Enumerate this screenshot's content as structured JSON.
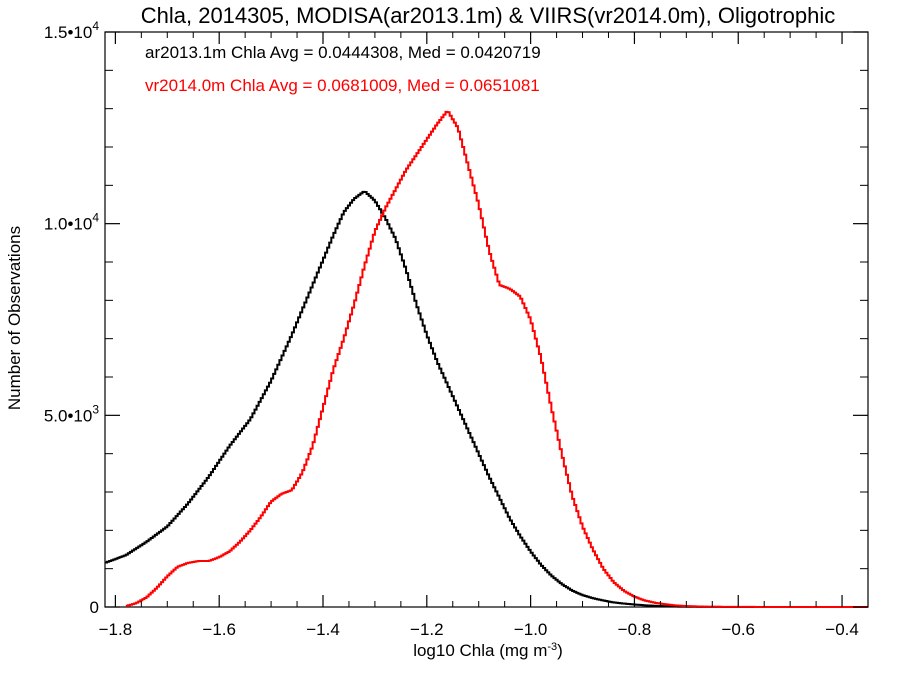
{
  "chart_data": {
    "type": "line",
    "title": "Chla, 2014305, MODISA(ar2013.1m) & VIIRS(vr2014.0m), Oligotrophic",
    "xlabel": "log10 Chla (mg m",
    "xlabel_sup": "-3",
    "xlabel_end": ")",
    "ylabel": "Number of Observations",
    "xlim": [
      -1.82,
      -0.35
    ],
    "ylim": [
      0,
      15000
    ],
    "x_ticks": [
      -1.8,
      -1.6,
      -1.4,
      -1.2,
      -1.0,
      -0.8,
      -0.6,
      -0.4
    ],
    "x_tick_labels": [
      "−1.8",
      "−1.6",
      "−1.4",
      "−1.2",
      "−1.0",
      "−0.8",
      "−0.6",
      "−0.4"
    ],
    "y_ticks": [
      0,
      5000,
      10000,
      15000
    ],
    "y_tick_labels": [
      {
        "base": "0",
        "exp": ""
      },
      {
        "base": "5.0•10",
        "exp": "3"
      },
      {
        "base": "1.0•10",
        "exp": "4"
      },
      {
        "base": "1.5•10",
        "exp": "4"
      }
    ],
    "annotations": [
      {
        "text": "ar2013.1m Chla Avg = 0.0444308, Med = 0.0420719",
        "color": "#000000"
      },
      {
        "text": "vr2014.0m Chla Avg = 0.0681009, Med = 0.0651081",
        "color": "#ff0000"
      }
    ],
    "step": "histogram",
    "series": [
      {
        "color": "#000000",
        "x": [
          -1.82,
          -1.78,
          -1.74,
          -1.7,
          -1.66,
          -1.62,
          -1.58,
          -1.54,
          -1.5,
          -1.46,
          -1.42,
          -1.38,
          -1.36,
          -1.34,
          -1.32,
          -1.3,
          -1.28,
          -1.26,
          -1.24,
          -1.22,
          -1.2,
          -1.18,
          -1.16,
          -1.14,
          -1.12,
          -1.1,
          -1.08,
          -1.06,
          -1.04,
          -1.02,
          -1.0,
          -0.98,
          -0.96,
          -0.94,
          -0.92,
          -0.9,
          -0.88,
          -0.86,
          -0.84,
          -0.82,
          -0.8,
          -0.78,
          -0.76,
          -0.74,
          -0.72,
          -0.7,
          -0.68,
          -0.66,
          -0.62,
          -0.5,
          -0.35
        ],
        "y": [
          1150,
          1350,
          1700,
          2100,
          2700,
          3400,
          4200,
          4900,
          5900,
          7100,
          8400,
          9700,
          10300,
          10650,
          10850,
          10600,
          10150,
          9600,
          8800,
          7900,
          7100,
          6400,
          5800,
          5200,
          4600,
          4000,
          3400,
          2850,
          2300,
          1850,
          1450,
          1100,
          820,
          600,
          430,
          310,
          230,
          170,
          120,
          90,
          65,
          45,
          30,
          20,
          12,
          8,
          5,
          3,
          1,
          0,
          0
        ]
      },
      {
        "color": "#ff0000",
        "x": [
          -1.78,
          -1.76,
          -1.74,
          -1.72,
          -1.7,
          -1.68,
          -1.66,
          -1.64,
          -1.62,
          -1.6,
          -1.58,
          -1.56,
          -1.54,
          -1.52,
          -1.5,
          -1.48,
          -1.46,
          -1.44,
          -1.42,
          -1.4,
          -1.38,
          -1.36,
          -1.34,
          -1.32,
          -1.3,
          -1.28,
          -1.26,
          -1.24,
          -1.22,
          -1.2,
          -1.18,
          -1.16,
          -1.14,
          -1.12,
          -1.1,
          -1.08,
          -1.06,
          -1.04,
          -1.02,
          -1.0,
          -0.98,
          -0.96,
          -0.94,
          -0.92,
          -0.9,
          -0.88,
          -0.86,
          -0.84,
          -0.82,
          -0.8,
          -0.78,
          -0.76,
          -0.74,
          -0.72,
          -0.7,
          -0.68,
          -0.66,
          -0.62,
          -0.5,
          -0.35
        ],
        "y": [
          20,
          100,
          250,
          500,
          800,
          1050,
          1150,
          1200,
          1200,
          1300,
          1450,
          1700,
          2000,
          2350,
          2750,
          2950,
          3050,
          3500,
          4200,
          5200,
          6200,
          7000,
          7900,
          8900,
          9800,
          10400,
          10900,
          11400,
          11800,
          12200,
          12600,
          12950,
          12500,
          11500,
          10500,
          9300,
          8400,
          8300,
          8100,
          7500,
          6500,
          5200,
          4000,
          2900,
          2100,
          1500,
          1000,
          650,
          420,
          270,
          170,
          110,
          70,
          40,
          25,
          15,
          8,
          3,
          0,
          0
        ]
      }
    ]
  }
}
